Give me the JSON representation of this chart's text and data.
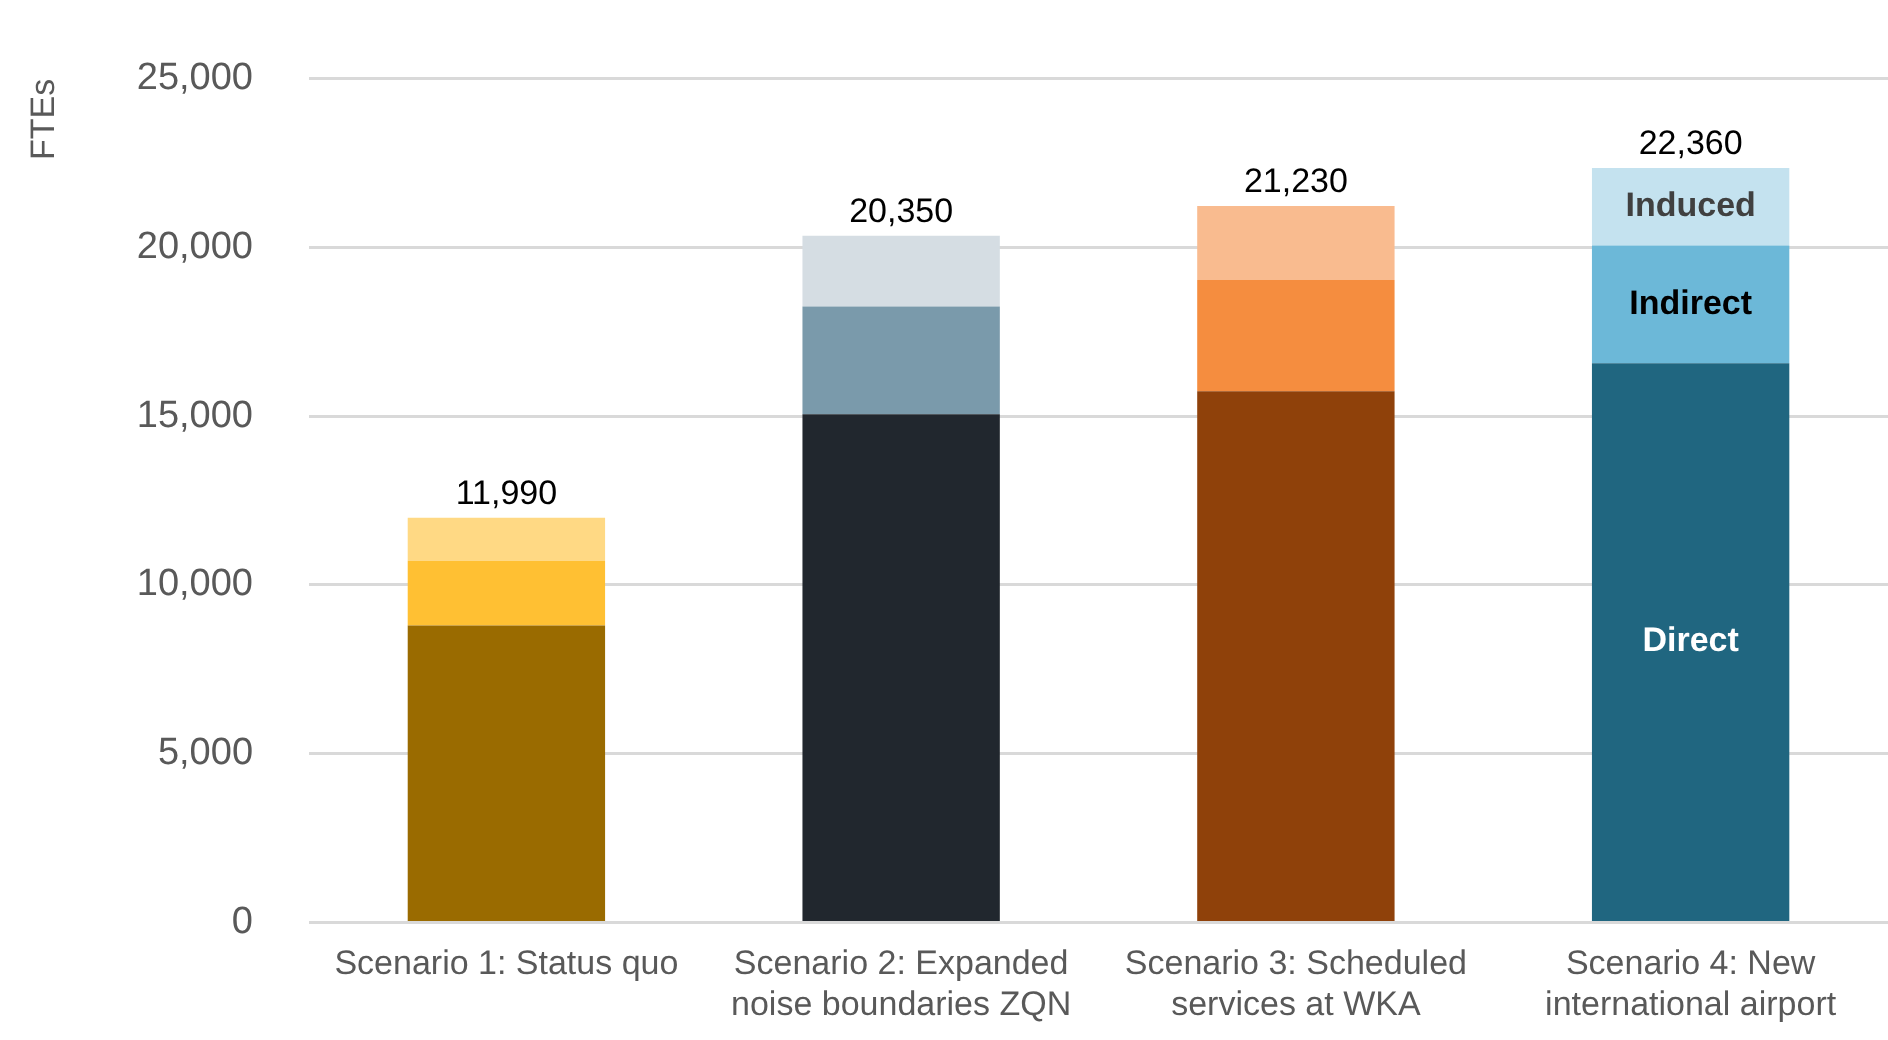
{
  "chart_data": {
    "type": "bar",
    "stacked": true,
    "ylabel": "FTEs",
    "categories": [
      "Scenario 1: Status quo",
      "Scenario 2: Expanded noise boundaries ZQN",
      "Scenario 3: Scheduled services at WKA",
      "Scenario 4: New international airport"
    ],
    "series": [
      {
        "name": "Direct",
        "colors": [
          "#9a6b00",
          "#21272e",
          "#8f410a",
          "#206680"
        ],
        "values": [
          8800,
          15060,
          15740,
          16570
        ]
      },
      {
        "name": "Indirect",
        "colors": [
          "#ffc033",
          "#7a9aab",
          "#f58d3f",
          "#6cb8d8"
        ],
        "values": [
          1920,
          3190,
          3300,
          3490
        ]
      },
      {
        "name": "Induced",
        "colors": [
          "#ffd984",
          "#d5dde3",
          "#f9bb8f",
          "#c4e2ef"
        ],
        "values": [
          1270,
          2100,
          2190,
          2300
        ]
      }
    ],
    "totals": [
      "11,990",
      "20,350",
      "21,230",
      "22,360"
    ],
    "ylim": [
      0,
      25000
    ],
    "yticks": [
      {
        "value": 0,
        "label": "0"
      },
      {
        "value": 5000,
        "label": "5,000"
      },
      {
        "value": 10000,
        "label": "10,000"
      },
      {
        "value": 15000,
        "label": "15,000"
      },
      {
        "value": 20000,
        "label": "20,000"
      },
      {
        "value": 25000,
        "label": "25,000"
      }
    ],
    "grid": "y",
    "legend": false
  }
}
